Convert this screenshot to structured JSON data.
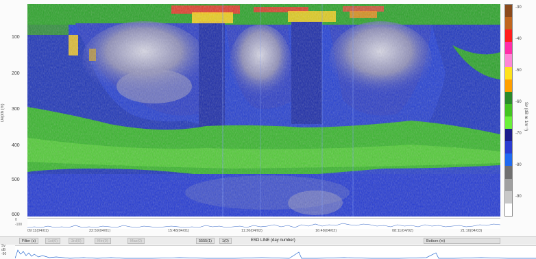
{
  "echogram": {
    "y_axis_title": "Depth (m)",
    "y_ticks": [
      "100",
      "200",
      "300",
      "400",
      "500",
      "600"
    ]
  },
  "colorbar": {
    "title": "Sv (dB re 1m⁻¹)",
    "ticks": [
      "-30",
      "-40",
      "-50",
      "-60",
      "-70",
      "-80",
      "-90"
    ],
    "colors": [
      "#8b4a1c",
      "#c0661f",
      "#ff1e1e",
      "#ff2fa8",
      "#ff86d6",
      "#ffe21c",
      "#ffa000",
      "#2a8a2a",
      "#43c321",
      "#6af03a",
      "#1c1c8c",
      "#2a3cd0",
      "#1f6af0",
      "#707070",
      "#a0a0a0",
      "#c8c8c8",
      "#ffffff"
    ]
  },
  "strip": {
    "left_labels": [
      "0",
      "-100"
    ]
  },
  "time_axis": {
    "ticks": [
      "09:11(04/01)",
      "22:59(04/01)",
      "15:48(04/01)",
      "11:26(04/02)",
      "16:48(04/02)",
      "08:11(04/02)",
      "21:10(04/03)"
    ]
  },
  "toolbar": {
    "filter_label": "Filter (s)",
    "btn1": "1st(0)",
    "btn2": "3rd(0)",
    "btn3": "Min(0)",
    "btn4": "Max(0)",
    "btn5": "5555(1)",
    "btn6": "1(0)",
    "center_label": "ESD LINE (day number)",
    "bottom_label": "Bottom (m)"
  },
  "bottom": {
    "left_labels": [
      "Sv",
      "dB",
      "-90"
    ]
  }
}
